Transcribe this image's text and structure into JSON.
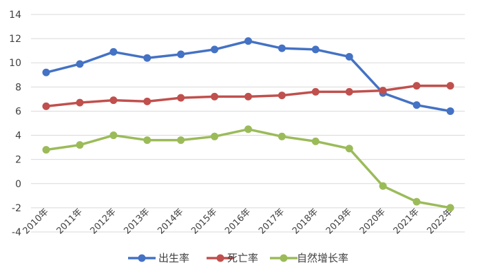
{
  "chart_data": {
    "type": "line",
    "categories": [
      "2010年",
      "2011年",
      "2012年",
      "2013年",
      "2014年",
      "2015年",
      "2016年",
      "2017年",
      "2018年",
      "2019年",
      "2020年",
      "2021年",
      "2022年"
    ],
    "series": [
      {
        "name": "出生率",
        "color": "#4472c4",
        "values": [
          9.2,
          9.9,
          10.9,
          10.4,
          10.7,
          11.1,
          11.8,
          11.2,
          11.1,
          10.5,
          7.5,
          6.5,
          6.0
        ]
      },
      {
        "name": "死亡率",
        "color": "#c0504d",
        "values": [
          6.4,
          6.7,
          6.9,
          6.8,
          7.1,
          7.2,
          7.2,
          7.3,
          7.6,
          7.6,
          7.7,
          8.1,
          8.1
        ]
      },
      {
        "name": "自然增长率",
        "color": "#9bbb59",
        "values": [
          2.8,
          3.2,
          4.0,
          3.6,
          3.6,
          3.9,
          4.5,
          3.9,
          3.5,
          2.9,
          -0.2,
          -1.5,
          -2.0
        ]
      }
    ],
    "ylim": [
      -4,
      14
    ],
    "yticks": [
      -4,
      -2,
      0,
      2,
      4,
      6,
      8,
      10,
      12,
      14
    ],
    "grid": true,
    "legend_position": "bottom",
    "title": "",
    "xlabel": "",
    "ylabel": ""
  }
}
